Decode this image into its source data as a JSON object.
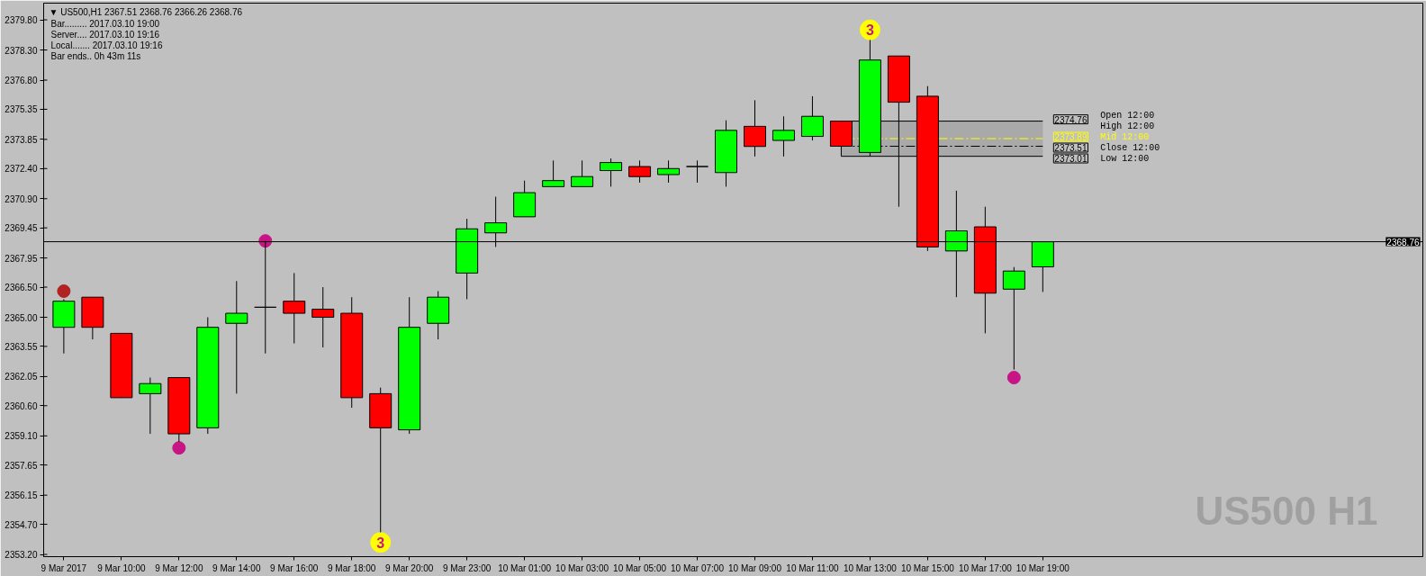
{
  "chart_data": {
    "type": "candlestick",
    "title": "▼ US500,H1 2367.51 2368.76 2366.26 2368.76",
    "categories": [
      "9 Mar 2017",
      null,
      "9 Mar 10:00",
      null,
      "9 Mar 12:00",
      null,
      "9 Mar 14:00",
      null,
      "9 Mar 16:00",
      null,
      "9 Mar 18:00",
      null,
      "9 Mar 20:00",
      null,
      "9 Mar 23:00",
      null,
      "10 Mar 01:00",
      null,
      "10 Mar 03:00",
      null,
      "10 Mar 05:00",
      null,
      "10 Mar 07:00",
      null,
      "10 Mar 09:00",
      null,
      "10 Mar 11:00",
      null,
      "10 Mar 13:00",
      null,
      "10 Mar 15:00",
      null,
      "10 Mar 17:00",
      null,
      "10 Mar 19:00"
    ],
    "ohlc": [
      [
        2364.5,
        2365.9,
        2363.2,
        2365.8
      ],
      [
        2366.0,
        2366.0,
        2363.9,
        2364.5
      ],
      [
        2364.2,
        2364.2,
        2361.0,
        2361.0
      ],
      [
        2361.2,
        2362.0,
        2359.2,
        2361.7
      ],
      [
        2362.0,
        2362.0,
        2358.8,
        2359.2
      ],
      [
        2359.5,
        2365.0,
        2359.2,
        2364.5
      ],
      [
        2364.7,
        2366.8,
        2361.2,
        2365.2
      ],
      [
        2365.5,
        2368.8,
        2363.2,
        2365.5
      ],
      [
        2365.8,
        2367.2,
        2363.7,
        2365.2
      ],
      [
        2365.4,
        2366.5,
        2363.5,
        2365.0
      ],
      [
        2365.2,
        2366.0,
        2360.5,
        2361.0
      ],
      [
        2361.2,
        2361.5,
        2354.3,
        2359.5
      ],
      [
        2359.4,
        2366.0,
        2359.2,
        2364.5
      ],
      [
        2364.7,
        2366.3,
        2363.9,
        2366.0
      ],
      [
        2367.2,
        2369.9,
        2365.9,
        2369.4
      ],
      [
        2369.2,
        2371.0,
        2368.5,
        2369.7
      ],
      [
        2370.0,
        2371.8,
        2370.0,
        2371.2
      ],
      [
        2371.5,
        2372.8,
        2371.5,
        2371.8
      ],
      [
        2371.5,
        2372.8,
        2371.5,
        2372.0
      ],
      [
        2372.3,
        2372.9,
        2371.5,
        2372.7
      ],
      [
        2372.5,
        2372.8,
        2371.7,
        2372.0
      ],
      [
        2372.1,
        2372.8,
        2371.7,
        2372.4
      ],
      [
        2372.5,
        2372.8,
        2371.7,
        2372.5
      ],
      [
        2372.2,
        2374.8,
        2371.5,
        2374.3
      ],
      [
        2374.5,
        2375.8,
        2373.0,
        2373.5
      ],
      [
        2373.8,
        2375.0,
        2373.0,
        2374.3
      ],
      [
        2374.0,
        2376.0,
        2373.8,
        2375.0
      ],
      [
        2374.76,
        2374.76,
        2373.01,
        2373.51
      ],
      [
        2373.2,
        2378.8,
        2373.0,
        2377.8
      ],
      [
        2378.0,
        2378.0,
        2370.5,
        2375.7
      ],
      [
        2376.0,
        2376.5,
        2368.3,
        2368.5
      ],
      [
        2368.3,
        2371.3,
        2366.0,
        2369.3
      ],
      [
        2369.5,
        2370.5,
        2364.2,
        2366.2
      ],
      [
        2366.4,
        2367.5,
        2362.4,
        2367.3
      ],
      [
        2367.51,
        2368.76,
        2366.26,
        2368.76
      ]
    ],
    "colors": [
      "#00ff00",
      "#ff0000",
      "#ff0000",
      "#00ff00",
      "#ff0000",
      "#00ff00",
      "#00ff00",
      "#000000",
      "#ff0000",
      "#ff0000",
      "#ff0000",
      "#ff0000",
      "#00ff00",
      "#00ff00",
      "#00ff00",
      "#00ff00",
      "#00ff00",
      "#00ff00",
      "#00ff00",
      "#00ff00",
      "#ff0000",
      "#00ff00",
      "#000000",
      "#00ff00",
      "#ff0000",
      "#00ff00",
      "#00ff00",
      "#ff0000",
      "#00ff00",
      "#ff0000",
      "#ff0000",
      "#00ff00",
      "#ff0000",
      "#00ff00",
      "#00ff00"
    ],
    "ylim": [
      2353.09,
      2380.63
    ],
    "yticks": [
      {
        "value": 2379.8,
        "label": "2379.80"
      },
      {
        "value": 2378.3,
        "label": "2378.30"
      },
      {
        "value": 2376.8,
        "label": "2376.80"
      },
      {
        "value": 2375.35,
        "label": "2375.35"
      },
      {
        "value": 2373.85,
        "label": "2373.85"
      },
      {
        "value": 2372.4,
        "label": "2372.40"
      },
      {
        "value": 2370.9,
        "label": "2370.90"
      },
      {
        "value": 2369.45,
        "label": "2369.45"
      },
      {
        "value": 2367.95,
        "label": "2367.95"
      },
      {
        "value": 2366.5,
        "label": "2366.50"
      },
      {
        "value": 2365,
        "label": "2365.00"
      },
      {
        "value": 2363.55,
        "label": "2363.55"
      },
      {
        "value": 2362.05,
        "label": "2362.05"
      },
      {
        "value": 2360.6,
        "label": "2360.60"
      },
      {
        "value": 2359.1,
        "label": "2359.10"
      },
      {
        "value": 2357.65,
        "label": "2357.65"
      },
      {
        "value": 2356.15,
        "label": "2356.15"
      },
      {
        "value": 2354.7,
        "label": "2354.70"
      },
      {
        "value": 2353.2,
        "label": "2353.20"
      }
    ],
    "marker": "circle",
    "series": [
      {
        "type": "scatter",
        "color": "#c71585",
        "values": [
          null,
          null,
          null,
          null,
          2358.5,
          null,
          null,
          2368.8,
          null,
          null,
          null,
          null,
          null,
          null,
          null,
          null,
          null,
          null,
          null,
          null,
          null,
          null,
          null,
          null,
          null,
          null,
          null,
          null,
          null,
          null,
          null,
          null,
          null,
          2362.0,
          null
        ]
      },
      {
        "type": "scatter",
        "color": "#ffff00",
        "values": [
          null,
          null,
          null,
          null,
          null,
          null,
          null,
          null,
          null,
          null,
          null,
          2353.8,
          null,
          null,
          null,
          null,
          null,
          null,
          null,
          null,
          null,
          null,
          null,
          null,
          null,
          null,
          null,
          null,
          2379.3,
          null,
          null,
          null,
          null,
          null,
          null
        ]
      },
      {
        "type": "scatter",
        "color": "#b22222",
        "values": [
          2366.3,
          null,
          null,
          null,
          null,
          null,
          null,
          null,
          null,
          null,
          null,
          null,
          null,
          null,
          null,
          null,
          null,
          null,
          null,
          null,
          null,
          null,
          null,
          null,
          null,
          null,
          null,
          null,
          null,
          null,
          null,
          null,
          null,
          null,
          null
        ]
      }
    ],
    "bands": [
      {
        "axis": "y",
        "from": 2373.01,
        "to": 2374.76,
        "color": "#a9a9a9"
      }
    ],
    "ref_lines": [
      {
        "axis": "y",
        "value": 2368.76,
        "label": "2368.76",
        "color": "#000000"
      },
      {
        "axis": "y",
        "value": 2374.76,
        "label": "2374.76",
        "color": "#000000"
      },
      {
        "axis": "y",
        "value": 2373.89,
        "label": "2373.89",
        "color": "#ffff00",
        "line_style": "dashed"
      },
      {
        "axis": "y",
        "value": 2373.51,
        "label": "2373.51",
        "color": "#000000",
        "line_style": "dashed"
      },
      {
        "axis": "y",
        "value": 2373.01,
        "label": "2373.01",
        "color": "#000000"
      }
    ],
    "annotations": [
      "Bar......... 2017.03.10 19:00",
      "Server.... 2017.03.10 19:16",
      "Local....... 2017.03.10 19:16",
      "Bar ends.. 0h 43m 11s",
      "Open 12:00",
      "High 12:00",
      "Mid 12:00",
      "Close 12:00",
      "Low 12:00",
      {
        "text": "3",
        "y": 2353.8
      },
      {
        "text": "3",
        "x": "10 Mar 13:00",
        "y": 2379.3
      },
      "US500 H1"
    ]
  }
}
